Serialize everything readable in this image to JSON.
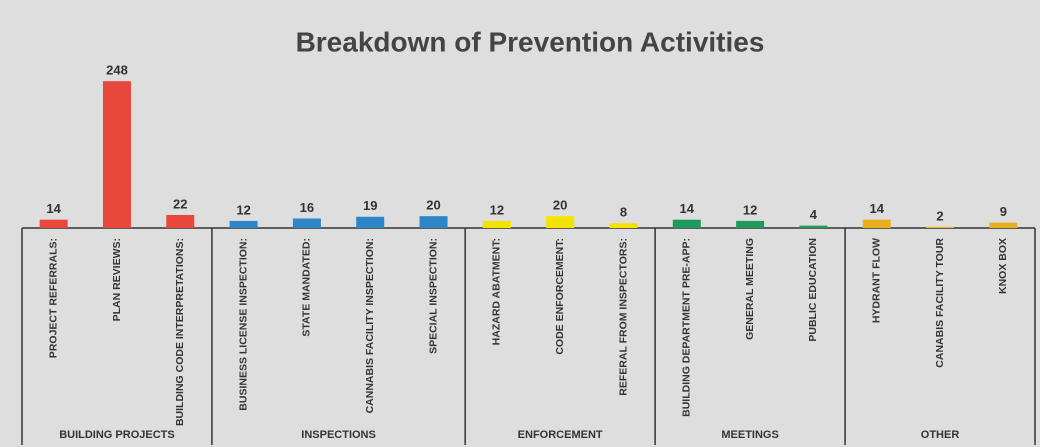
{
  "chart_data": {
    "type": "bar",
    "title": "Breakdown of Prevention Activities",
    "ylim": [
      0,
      250
    ],
    "groups": [
      {
        "name": "BUILDING PROJECTS",
        "color": "#e8473c",
        "categories": [
          "PROJECT REFERRALS:",
          "PLAN REVIEWS:",
          "BUILDING CODE INTERPRETATIONS:"
        ],
        "values": [
          14,
          248,
          22
        ]
      },
      {
        "name": "INSPECTIONS",
        "color": "#2e86c8",
        "categories": [
          "BUSINESS LICENSE INSPECTION:",
          "STATE MANDATED:",
          "CANNABIS FACILITY INSPECTION:",
          "SPECIAL INSPECTION:"
        ],
        "values": [
          12,
          16,
          19,
          20
        ]
      },
      {
        "name": "ENFORCEMENT",
        "color": "#f2e400",
        "categories": [
          "HAZARD ABATMENT:",
          "CODE ENFORCEMENT:",
          "REFERAL FROM INSPECTORS:"
        ],
        "values": [
          12,
          20,
          8
        ]
      },
      {
        "name": "MEETINGS",
        "color": "#1e9a5a",
        "categories": [
          "BUILDING DEPARTMENT PRE-APP:",
          "GENERAL MEETING",
          "PUBLIC EDUCATION"
        ],
        "values": [
          14,
          12,
          4
        ]
      },
      {
        "name": "OTHER",
        "color": "#e8b020",
        "categories": [
          "HYDRANT FLOW",
          "CANABIS FACILITY TOUR",
          "KNOX BOX"
        ],
        "values": [
          14,
          2,
          9
        ]
      }
    ]
  }
}
